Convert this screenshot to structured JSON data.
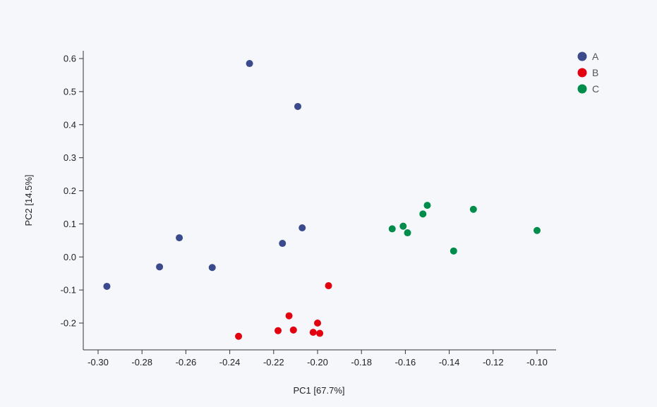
{
  "chart_data": {
    "type": "scatter",
    "xlabel": "PC1 [67.7%]",
    "ylabel": "PC2 [14.5%]",
    "xlim": [
      -0.3,
      -0.1
    ],
    "ylim": [
      -0.2,
      0.6
    ],
    "xticks": [
      "-0.30",
      "-0.28",
      "-0.26",
      "-0.24",
      "-0.22",
      "-0.20",
      "-0.18",
      "-0.16",
      "-0.14",
      "-0.12",
      "-0.10"
    ],
    "yticks": [
      "0.6",
      "0.5",
      "0.4",
      "0.3",
      "0.2",
      "0.1",
      "0.0",
      "-0.1",
      "-0.2"
    ],
    "legend_position": "top-right",
    "grid": false,
    "series": [
      {
        "name": "A",
        "color": "#3a4a8c",
        "points": [
          [
            -0.231,
            0.585
          ],
          [
            -0.209,
            0.455
          ],
          [
            -0.207,
            0.088
          ],
          [
            -0.216,
            0.041
          ],
          [
            -0.263,
            0.058
          ],
          [
            -0.272,
            -0.03
          ],
          [
            -0.248,
            -0.032
          ],
          [
            -0.296,
            -0.089
          ]
        ]
      },
      {
        "name": "B",
        "color": "#e3000f",
        "points": [
          [
            -0.195,
            -0.087
          ],
          [
            -0.213,
            -0.178
          ],
          [
            -0.2,
            -0.2
          ],
          [
            -0.218,
            -0.223
          ],
          [
            -0.211,
            -0.221
          ],
          [
            -0.202,
            -0.228
          ],
          [
            -0.199,
            -0.231
          ],
          [
            -0.236,
            -0.24
          ]
        ]
      },
      {
        "name": "C",
        "color": "#008c4a",
        "points": [
          [
            -0.15,
            0.156
          ],
          [
            -0.152,
            0.13
          ],
          [
            -0.129,
            0.144
          ],
          [
            -0.166,
            0.085
          ],
          [
            -0.161,
            0.093
          ],
          [
            -0.159,
            0.073
          ],
          [
            -0.138,
            0.018
          ],
          [
            -0.1,
            0.08
          ]
        ]
      }
    ]
  }
}
